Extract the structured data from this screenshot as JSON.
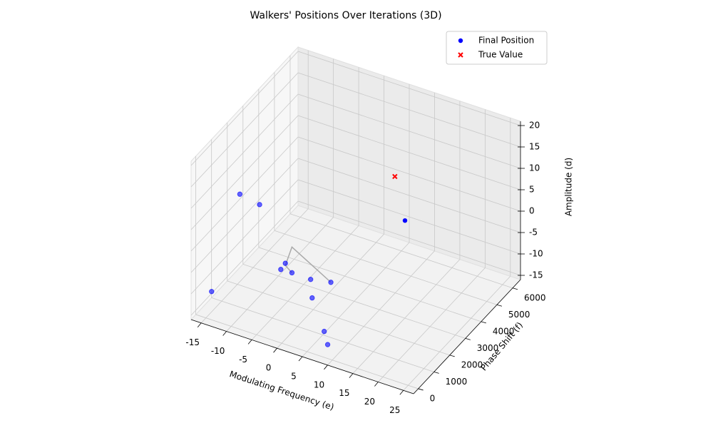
{
  "chart_data": {
    "type": "scatter3d",
    "title": "Walkers' Positions Over Iterations (3D)",
    "x_label": "Modulating Frequency (e)",
    "y_label": "Phase Shift (f)",
    "z_label": "Amplitude (d)",
    "xlim": [
      -17,
      27
    ],
    "ylim": [
      -300,
      6500
    ],
    "zlim": [
      -16,
      21
    ],
    "xticks": [
      -15,
      -10,
      -5,
      0,
      5,
      10,
      15,
      20,
      25
    ],
    "yticks": [
      0,
      1000,
      2000,
      3000,
      4000,
      5000,
      6000
    ],
    "zticks": [
      -15,
      -10,
      -5,
      0,
      5,
      10,
      15,
      20
    ],
    "grid": true,
    "legend": "upper right",
    "path": {
      "color": "#aaaaaa",
      "x": [
        4.3,
        -3.4,
        -4.7,
        -3.4
      ],
      "y": [
        1740,
        1740,
        1740,
        1740
      ],
      "z": [
        -6.9,
        -1.7,
        -6.5,
        -7.7
      ]
    },
    "walkers": {
      "color": "#0000ff",
      "alpha": 0.6,
      "x": [
        -13.7,
        -9.8,
        -14.0,
        -5.6,
        -4.7,
        -3.4,
        0.3,
        4.3,
        0.6,
        5.1,
        7.9
      ],
      "y": [
        1740,
        1740,
        40,
        1740,
        1740,
        1740,
        1740,
        1740,
        1740,
        1060,
        380
      ],
      "z": [
        6.6,
        5.7,
        -9.6,
        -7.8,
        -6.0,
        -7.7,
        -7.8,
        -6.9,
        -12.0,
        -15.4,
        -14.7
      ]
    },
    "series": [
      {
        "name": "Final Position",
        "color": "#0000ff",
        "marker": "o",
        "x": [
          10.5
        ],
        "y": [
          4460
        ],
        "z": [
          -0.7
        ]
      },
      {
        "name": "True Value",
        "color": "#ff0000",
        "marker": "x",
        "x": [
          8.5
        ],
        "y": [
          4460
        ],
        "z": [
          8.8
        ]
      }
    ]
  }
}
